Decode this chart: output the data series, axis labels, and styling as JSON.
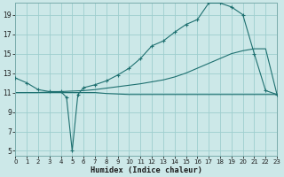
{
  "xlabel": "Humidex (Indice chaleur)",
  "bg_color": "#cce8e8",
  "grid_color": "#9ecece",
  "line_color": "#1e7070",
  "x_ticks": [
    0,
    1,
    2,
    3,
    4,
    5,
    6,
    7,
    8,
    9,
    10,
    11,
    12,
    13,
    14,
    15,
    16,
    17,
    18,
    19,
    20,
    21,
    22,
    23
  ],
  "y_ticks": [
    5,
    7,
    9,
    11,
    13,
    15,
    17,
    19
  ],
  "xlim": [
    0,
    23
  ],
  "ylim": [
    4.5,
    20.2
  ],
  "curve1_x": [
    0,
    1,
    2,
    3,
    4,
    4.5,
    5,
    5.5,
    6,
    7,
    8,
    9,
    10,
    11,
    12,
    13,
    14,
    15,
    16,
    17,
    18,
    19,
    20,
    21,
    22,
    23
  ],
  "curve1_y": [
    12.5,
    12.0,
    11.3,
    11.1,
    11.1,
    10.5,
    5.0,
    10.8,
    11.5,
    11.8,
    12.2,
    12.8,
    13.5,
    14.5,
    15.8,
    16.3,
    17.2,
    18.0,
    18.5,
    20.2,
    20.2,
    19.8,
    19.0,
    15.0,
    11.2,
    10.8
  ],
  "curve2_x": [
    0,
    1,
    2,
    3,
    4,
    5,
    6,
    7,
    8,
    9,
    10,
    11,
    12,
    13,
    14,
    15,
    16,
    17,
    18,
    19,
    20,
    21,
    22,
    23
  ],
  "curve2_y": [
    11.0,
    11.0,
    11.0,
    11.05,
    11.1,
    11.15,
    11.2,
    11.3,
    11.45,
    11.6,
    11.75,
    11.9,
    12.1,
    12.3,
    12.6,
    13.0,
    13.5,
    14.0,
    14.5,
    15.0,
    15.3,
    15.5,
    15.5,
    10.8
  ],
  "curve3_x": [
    0,
    1,
    2,
    3,
    4,
    5,
    6,
    7,
    8,
    9,
    10,
    11,
    12,
    13,
    14,
    15,
    16,
    17,
    18,
    19,
    20,
    21,
    22,
    23
  ],
  "curve3_y": [
    11.0,
    11.0,
    11.0,
    11.0,
    11.0,
    11.0,
    11.0,
    11.0,
    10.9,
    10.85,
    10.8,
    10.8,
    10.8,
    10.8,
    10.8,
    10.8,
    10.8,
    10.8,
    10.8,
    10.8,
    10.8,
    10.8,
    10.8,
    10.8
  ]
}
